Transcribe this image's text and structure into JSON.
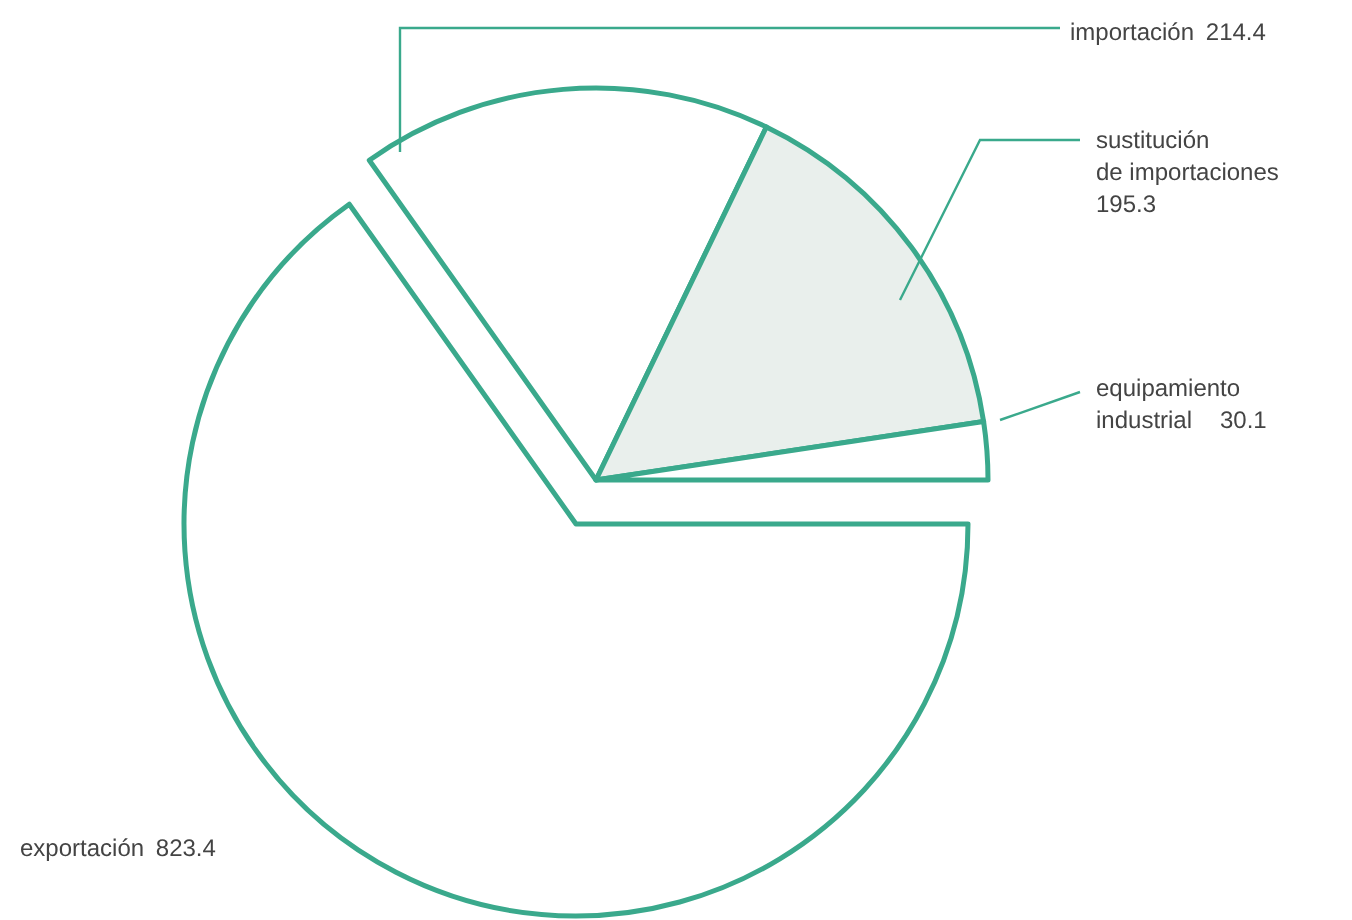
{
  "chart_data": {
    "type": "pie",
    "categories": [
      "importación",
      "sustitución\nde importaciones",
      "equipamiento\nindustrial",
      "exportación"
    ],
    "values": [
      214.4,
      195.3,
      30.1,
      823.4
    ],
    "colors": [
      "#ffffff",
      "#e9efec",
      "#ffffff",
      "#ffffff"
    ],
    "data_labels": true
  }
}
